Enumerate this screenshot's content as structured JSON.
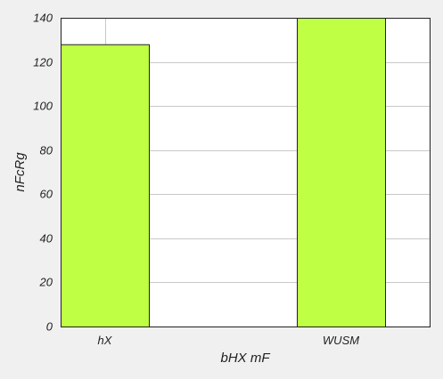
{
  "chart_data": {
    "type": "bar",
    "categories": [
      "hX",
      "WUSM"
    ],
    "values": [
      128,
      140
    ],
    "title": "",
    "xlabel": "bHX mF",
    "ylabel": "nFcRg",
    "ylim": [
      0,
      140
    ],
    "yticks": [
      0,
      20,
      40,
      60,
      80,
      100,
      120,
      140
    ],
    "grid": true,
    "bar_color": "#bfff44",
    "background_color": "#f0f0f0",
    "plot_background_color": "#ffffff"
  }
}
